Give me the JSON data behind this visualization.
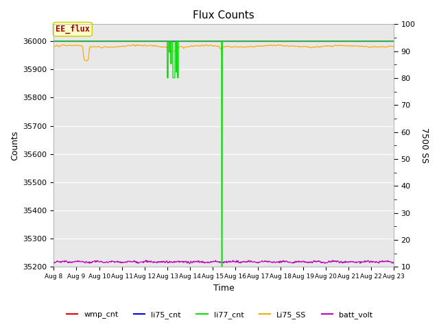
{
  "title": "Flux Counts",
  "xlabel": "Time",
  "ylabel_left": "Counts",
  "ylabel_right": "7500 SS",
  "ylim_left": [
    35200,
    36060
  ],
  "ylim_right": [
    10,
    100
  ],
  "x_tick_labels": [
    "Aug 8",
    "Aug 9",
    "Aug 10",
    "Aug 11",
    "Aug 12",
    "Aug 13",
    "Aug 14",
    "Aug 15",
    "Aug 16",
    "Aug 17",
    "Aug 18",
    "Aug 19",
    "Aug 20",
    "Aug 21",
    "Aug 22",
    "Aug 23"
  ],
  "bg_color": "#e8e8e8",
  "plot_bg_color": "#e8e8e8",
  "annotation_text": "EE_flux",
  "annotation_color": "#990000",
  "annotation_bg": "#ffffcc",
  "annotation_edge": "#cccc00",
  "colors": {
    "wmp_cnt": "#dd0000",
    "li75_cnt": "#0000dd",
    "li77_cnt": "#00dd00",
    "Li75_SS": "#ffaa00",
    "batt_volt": "#bb00bb"
  },
  "legend_labels": [
    "wmp_cnt",
    "li75_cnt",
    "li77_cnt",
    "Li75_SS",
    "batt_volt"
  ],
  "figsize": [
    6.4,
    4.8
  ],
  "dpi": 100
}
